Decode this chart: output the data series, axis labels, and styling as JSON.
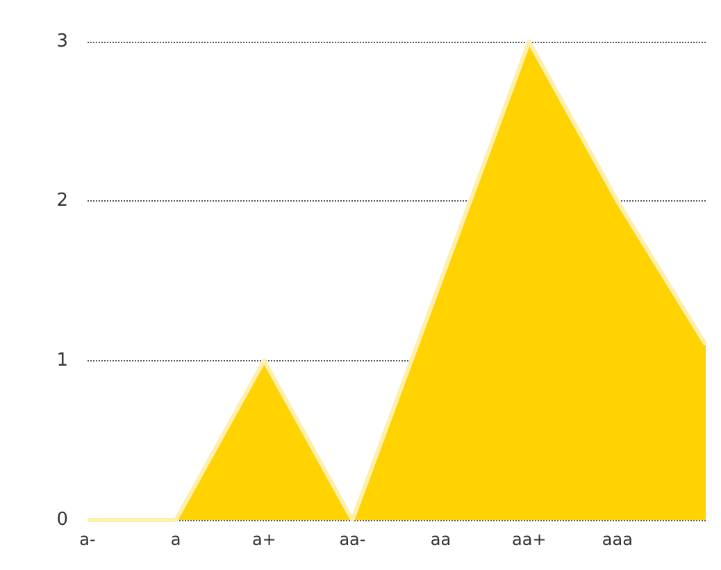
{
  "chart_data": {
    "type": "area",
    "categories": [
      "a-",
      "a",
      "a+",
      "aa-",
      "aa",
      "aa+",
      "aaa",
      null
    ],
    "series": [
      {
        "color": "#ffd200",
        "values": [
          0,
          0,
          1,
          0,
          1.5,
          3,
          2,
          1.1
        ]
      }
    ],
    "ylim": [
      0,
      3
    ],
    "yticks": [
      0,
      1,
      2,
      3
    ],
    "grid": "y",
    "marker": "none"
  }
}
